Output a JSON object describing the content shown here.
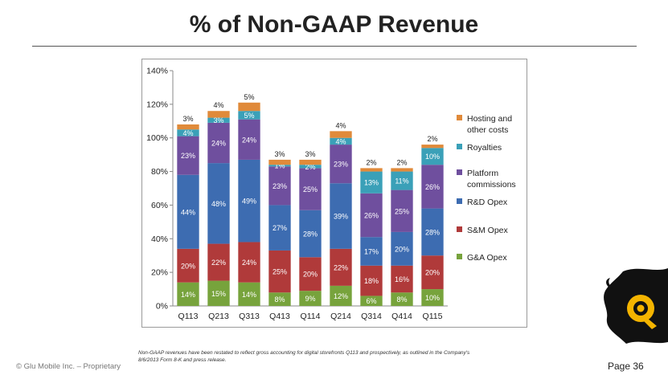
{
  "slide": {
    "title": "% of Non-GAAP Revenue",
    "footnote_line1": "Non-GAAP revenues have been restated to reflect gross accounting for digital storefronts Q113 and prospectively, as outlined in the Company's",
    "footnote_line2": "8/6/2013 Form 8-K and press release.",
    "copyright": "© Glu Mobile Inc. – Proprietary",
    "page": "Page 36",
    "logo_icon": "glu-logo-icon"
  },
  "chart_data": {
    "type": "bar",
    "stacked": true,
    "categories": [
      "Q113",
      "Q213",
      "Q313",
      "Q413",
      "Q114",
      "Q214",
      "Q314",
      "Q414",
      "Q115"
    ],
    "ylim": [
      0,
      140
    ],
    "yticks": [
      "0%",
      "20%",
      "40%",
      "60%",
      "80%",
      "100%",
      "120%",
      "140%"
    ],
    "grid": false,
    "legend_position": "right",
    "series": [
      {
        "name": "G&A Opex",
        "color": "#77a33c",
        "values": [
          14,
          15,
          14,
          8,
          9,
          12,
          6,
          8,
          10
        ],
        "labels": [
          "14%",
          "15%",
          "14%",
          "8%",
          "9%",
          "12%",
          "6%",
          "8%",
          "10%"
        ]
      },
      {
        "name": "S&M Opex",
        "color": "#b03a3a",
        "values": [
          20,
          22,
          24,
          25,
          20,
          22,
          18,
          16,
          20
        ],
        "labels": [
          "20%",
          "22%",
          "24%",
          "25%",
          "20%",
          "22%",
          "18%",
          "16%",
          "20%"
        ]
      },
      {
        "name": "R&D Opex",
        "color": "#3d6cb1",
        "values": [
          44,
          48,
          49,
          27,
          28,
          39,
          17,
          20,
          28
        ],
        "labels": [
          "44%",
          "48%",
          "49%",
          "27%",
          "28%",
          "39%",
          "17%",
          "20%",
          "28%"
        ]
      },
      {
        "name": "Platform commissions",
        "color": "#6f4f9e",
        "values": [
          23,
          24,
          24,
          23,
          25,
          23,
          26,
          25,
          26
        ],
        "labels": [
          "23%",
          "24%",
          "24%",
          "23%",
          "25%",
          "23%",
          "26%",
          "25%",
          "26%"
        ]
      },
      {
        "name": "Royalties",
        "color": "#3aa0b8",
        "values": [
          4,
          3,
          5,
          1,
          2,
          4,
          13,
          11,
          10
        ],
        "labels": [
          "4%",
          "3%",
          "5%",
          "1%",
          "2%",
          "4%",
          "13%",
          "11%",
          "10%"
        ]
      },
      {
        "name": "Hosting and other costs",
        "color": "#e08a3a",
        "values": [
          3,
          4,
          5,
          3,
          3,
          4,
          2,
          2,
          2
        ],
        "labels": [
          "3%",
          "4%",
          "5%",
          "3%",
          "3%",
          "4%",
          "2%",
          "2%",
          "2%"
        ]
      }
    ],
    "legend": [
      {
        "line1": "Hosting and",
        "line2": "other costs",
        "color": "#e08a3a"
      },
      {
        "line1": "Royalties",
        "line2": "",
        "color": "#3aa0b8"
      },
      {
        "line1": "Platform",
        "line2": "commissions",
        "color": "#6f4f9e"
      },
      {
        "line1": "R&D Opex",
        "line2": "",
        "color": "#3d6cb1"
      },
      {
        "line1": "S&M Opex",
        "line2": "",
        "color": "#b03a3a"
      },
      {
        "line1": "G&A Opex",
        "line2": "",
        "color": "#77a33c"
      }
    ]
  }
}
